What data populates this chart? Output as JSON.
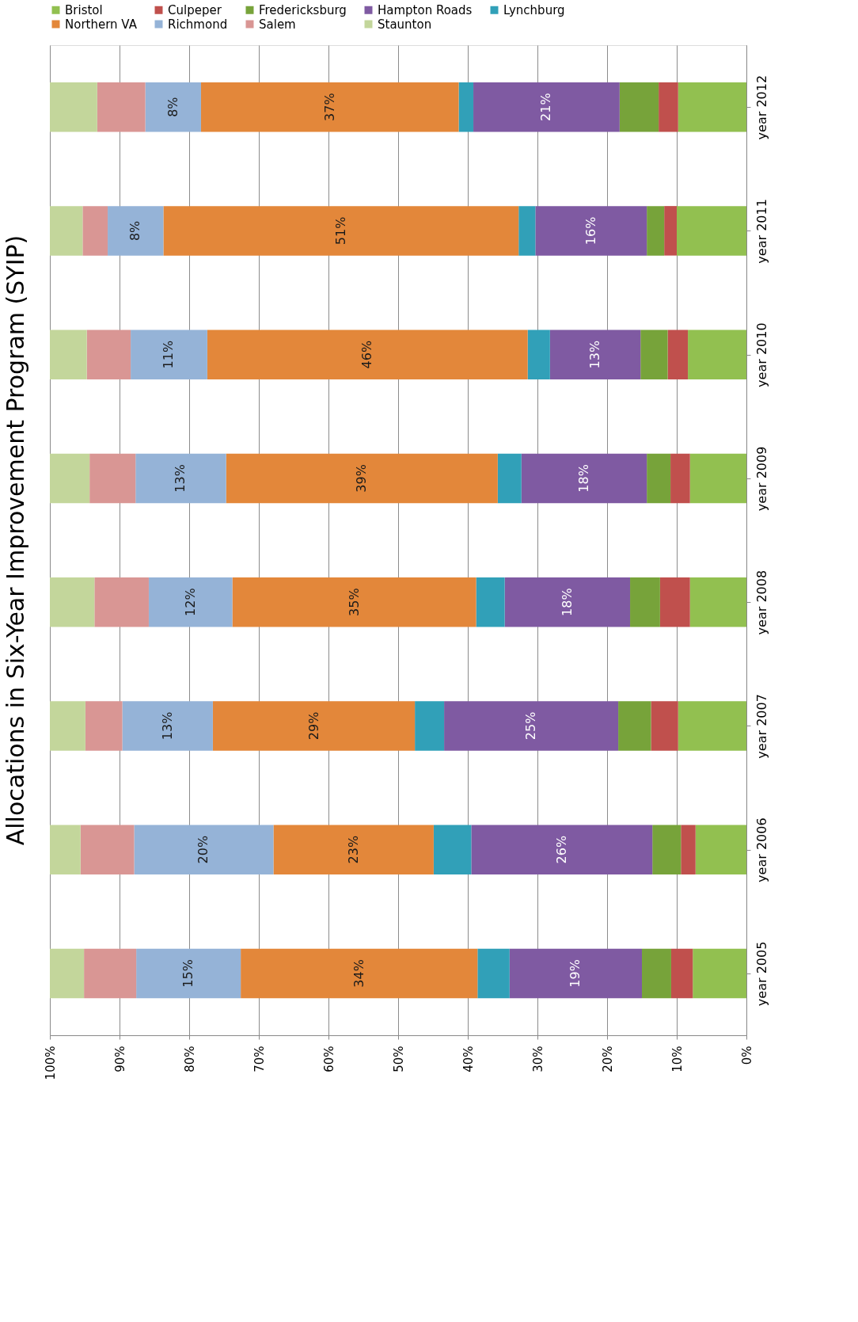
{
  "chart_data": {
    "type": "bar",
    "title": "Allocations in Six-Year Improvement Program (SYIP)",
    "orientation": "horizontal",
    "stacked": true,
    "legend": "top",
    "grid": "x",
    "categories": [
      "year 2012",
      "year 2011",
      "year 2010",
      "year 2009",
      "year 2008",
      "year 2007",
      "year 2006",
      "year 2005"
    ],
    "xlim": [
      100,
      0
    ],
    "xticks": [
      {
        "value": 100,
        "label": "100%"
      },
      {
        "value": 90,
        "label": "90%"
      },
      {
        "value": 80,
        "label": "80%"
      },
      {
        "value": 70,
        "label": "70%"
      },
      {
        "value": 60,
        "label": "60%"
      },
      {
        "value": 50,
        "label": "50%"
      },
      {
        "value": 40,
        "label": "40%"
      },
      {
        "value": 30,
        "label": "30%"
      },
      {
        "value": 20,
        "label": "20%"
      },
      {
        "value": 10,
        "label": "10%"
      },
      {
        "value": 0,
        "label": "0%"
      }
    ],
    "series": [
      {
        "name": "Bristol",
        "color": "#92c050",
        "values": [
          9.8,
          10,
          8.4,
          8.1,
          8.1,
          9.8,
          7.3,
          7.7
        ]
      },
      {
        "name": "Culpeper",
        "color": "#c0504d",
        "values": [
          2.8,
          1.8,
          2.9,
          2.8,
          4.3,
          3.9,
          2.1,
          3.1
        ]
      },
      {
        "name": "Fredericksburg",
        "color": "#77a33a",
        "values": [
          5.6,
          2.5,
          3.9,
          3.4,
          4.3,
          4.7,
          4.1,
          4.2
        ]
      },
      {
        "name": "Hampton Roads",
        "color": "#7f5aa2",
        "values": [
          21,
          16,
          13,
          18,
          18,
          25,
          26,
          19
        ],
        "value_labels": [
          "21%",
          "16%",
          "13%",
          "18%",
          "18%",
          "25%",
          "26%",
          "19%"
        ]
      },
      {
        "name": "Lynchburg",
        "color": "#31a0b8",
        "values": [
          2.1,
          2.4,
          3.2,
          3.4,
          4.1,
          4.2,
          5.4,
          4.6
        ]
      },
      {
        "name": "Northern VA",
        "color": "#e3873a",
        "values": [
          37,
          51,
          46,
          39,
          35,
          29,
          23,
          34
        ],
        "value_labels": [
          "37%",
          "51%",
          "46%",
          "39%",
          "35%",
          "29%",
          "23%",
          "34%"
        ]
      },
      {
        "name": "Richmond",
        "color": "#95b3d7",
        "values": [
          8,
          8,
          11,
          13,
          12,
          13,
          20,
          15
        ],
        "value_labels": [
          "8%",
          "8%",
          "11%",
          "13%",
          "12%",
          "13%",
          "20%",
          "15%"
        ]
      },
      {
        "name": "Salem",
        "color": "#d99694",
        "values": [
          6.9,
          3.6,
          6.3,
          6.6,
          7.8,
          5.3,
          7.7,
          7.5
        ]
      },
      {
        "name": "Staunton",
        "color": "#c3d69b",
        "values": [
          6.8,
          4.7,
          5.3,
          5.7,
          6.4,
          5.1,
          4.4,
          4.9
        ]
      }
    ]
  }
}
